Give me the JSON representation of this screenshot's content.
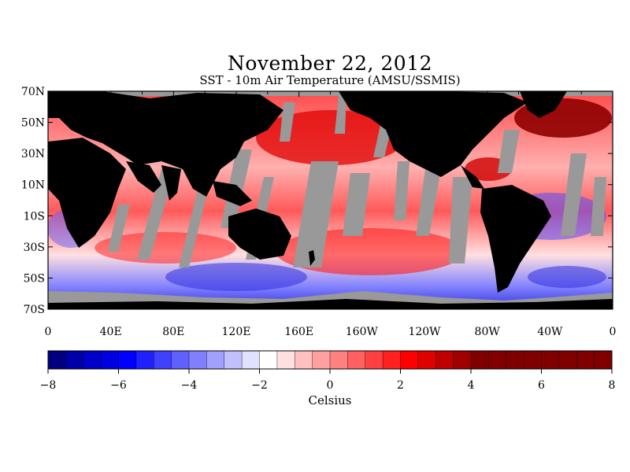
{
  "title": "November 22, 2012",
  "subtitle": "SST - 10m Air Temperature (AMSU/SSMIS)",
  "map": {
    "lat_labels": [
      "70N",
      "50N",
      "30N",
      "10N",
      "10S",
      "30S",
      "50S",
      "70S"
    ],
    "lon_labels": [
      "0",
      "40E",
      "80E",
      "120E",
      "160E",
      "160W",
      "120W",
      "80W",
      "40W",
      "0"
    ],
    "land_color": "#000000",
    "missing_color": "#999999"
  },
  "colorbar": {
    "min": -8,
    "max": 8,
    "tick_labels": [
      "−8",
      "−6",
      "−4",
      "−2",
      "0",
      "2",
      "4",
      "6",
      "8"
    ],
    "unit_label": "Celsius",
    "colors": [
      "#000080",
      "#0000a8",
      "#0000c8",
      "#0000e0",
      "#0000ff",
      "#2020ff",
      "#4040ff",
      "#6060ff",
      "#8080ff",
      "#a0a0ff",
      "#c0c0ff",
      "#e0e0ff",
      "#ffffff",
      "#ffe0e0",
      "#ffc0c0",
      "#ffa0a0",
      "#ff8080",
      "#ff6060",
      "#ff4040",
      "#ff2020",
      "#ff0000",
      "#e00000",
      "#c00000",
      "#a00000",
      "#800000",
      "#800000",
      "#800000",
      "#800000",
      "#800000",
      "#800000",
      "#800000",
      "#800000"
    ]
  }
}
